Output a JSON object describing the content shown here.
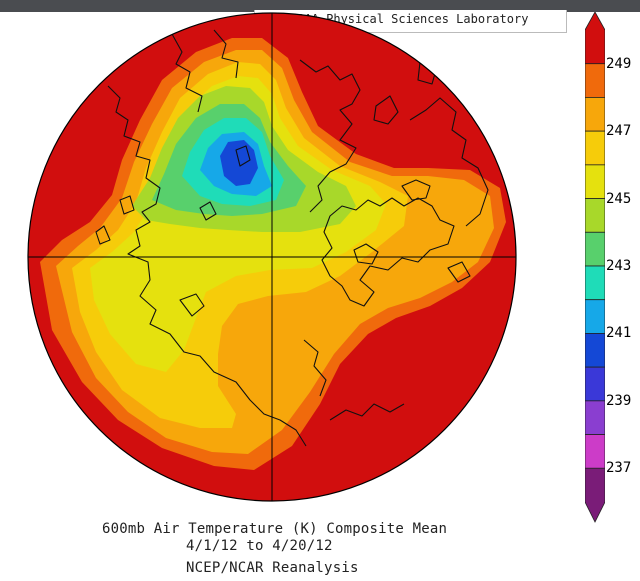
{
  "header": {
    "credit": "NOAA Physical Sciences Laboratory"
  },
  "map": {
    "projection": "north-polar-stereographic",
    "variable": "600mb Air Temperature (K)",
    "colors": {
      "ocean_fill": "#d30f0f",
      "coastline": "#111111",
      "grid": "#000000"
    }
  },
  "colorbar": {
    "labels": [
      "249",
      "247",
      "245",
      "243",
      "241",
      "239",
      "237"
    ],
    "levels": [
      {
        "value": ">249",
        "color": "#d10e0e"
      },
      {
        "value": "248-249",
        "color": "#f06a0c"
      },
      {
        "value": "247-248",
        "color": "#f7a70b"
      },
      {
        "value": "246-247",
        "color": "#f6cc0a"
      },
      {
        "value": "245-246",
        "color": "#e5e10e"
      },
      {
        "value": "244-245",
        "color": "#a8d82a"
      },
      {
        "value": "243-244",
        "color": "#58d06c"
      },
      {
        "value": "242-243",
        "color": "#1fdcb8"
      },
      {
        "value": "241-242",
        "color": "#16a8e8"
      },
      {
        "value": "240-241",
        "color": "#1448d6"
      },
      {
        "value": "239-240",
        "color": "#3a38d8"
      },
      {
        "value": "238-239",
        "color": "#8a3ed0"
      },
      {
        "value": "237-238",
        "color": "#cc3cc8"
      },
      {
        "value": "<237",
        "color": "#7a1c78"
      }
    ]
  },
  "caption": {
    "line1": "600mb Air Temperature (K) Composite Mean",
    "line2": "4/1/12  to 4/20/12",
    "line3": "NCEP/NCAR Reanalysis"
  }
}
